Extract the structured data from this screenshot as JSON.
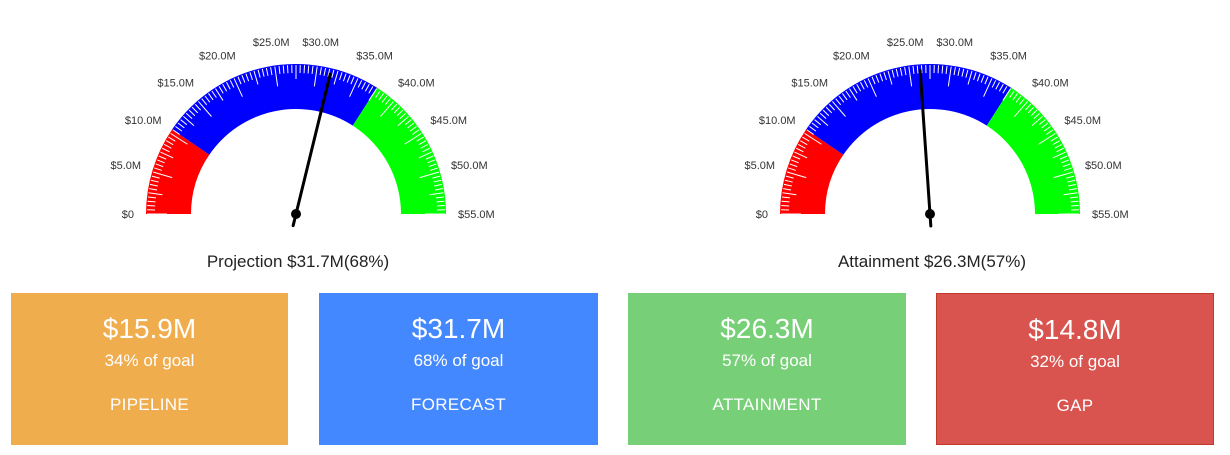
{
  "colors": {
    "red_band": "#ff0000",
    "blue_band": "#0000ff",
    "green_band": "#00ff00",
    "needle": "#000000",
    "tick": "#ffffff"
  },
  "chart_data": [
    {
      "type": "gauge",
      "min": 0,
      "max": 55,
      "unit": "M",
      "tick_labels": [
        "$0",
        "$5.0M",
        "$10.0M",
        "$15.0M",
        "$20.0M",
        "$25.0M",
        "$30.0M",
        "$35.0M",
        "$40.0M",
        "$45.0M",
        "$50.0M",
        "$55.0M"
      ],
      "bands": [
        {
          "from": 0,
          "to": 10.5,
          "color": "#ff0000"
        },
        {
          "from": 10.5,
          "to": 37.5,
          "color": "#0000ff"
        },
        {
          "from": 37.5,
          "to": 55,
          "color": "#00ff00"
        }
      ],
      "value": 31.7,
      "caption": "Projection $31.7M(68%)"
    },
    {
      "type": "gauge",
      "min": 0,
      "max": 55,
      "unit": "M",
      "tick_labels": [
        "$0",
        "$5.0M",
        "$10.0M",
        "$15.0M",
        "$20.0M",
        "$25.0M",
        "$30.0M",
        "$35.0M",
        "$40.0M",
        "$45.0M",
        "$50.0M",
        "$55.0M"
      ],
      "bands": [
        {
          "from": 0,
          "to": 10.5,
          "color": "#ff0000"
        },
        {
          "from": 10.5,
          "to": 37.5,
          "color": "#0000ff"
        },
        {
          "from": 37.5,
          "to": 55,
          "color": "#00ff00"
        }
      ],
      "value": 26.3,
      "caption": "Attainment $26.3M(57%)"
    }
  ],
  "cards": [
    {
      "value": "$15.9M",
      "pct": "34% of goal",
      "label": "PIPELINE",
      "color": "#f0ad4e"
    },
    {
      "value": "$31.7M",
      "pct": "68% of goal",
      "label": "FORECAST",
      "color": "#4488ff"
    },
    {
      "value": "$26.3M",
      "pct": "57% of goal",
      "label": "ATTAINMENT",
      "color": "#77d077"
    },
    {
      "value": "$14.8M",
      "pct": "32% of goal",
      "label": "GAP",
      "color": "#d9534f"
    }
  ]
}
